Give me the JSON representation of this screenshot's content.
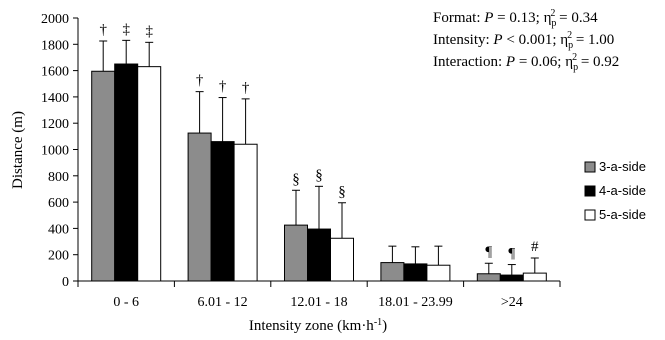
{
  "chart_data": {
    "type": "bar",
    "title": "",
    "xlabel": "Intensity zone (km·h",
    "xlabel_sup": "-1",
    "xlabel_end": ")",
    "ylabel": "Distance (m)",
    "ylim": [
      0,
      2000
    ],
    "yticks": [
      0,
      200,
      400,
      600,
      800,
      1000,
      1200,
      1400,
      1600,
      1800,
      2000
    ],
    "grid": false,
    "legend_position": "right",
    "categories": [
      "0 - 6",
      "6.01 - 12",
      "12.01 - 18",
      "18.01 - 23.99",
      ">24"
    ],
    "series": [
      {
        "name": "3-a-side",
        "color": "#8c8c8c",
        "values": [
          1595,
          1125,
          425,
          140,
          55
        ],
        "errors": [
          230,
          315,
          265,
          125,
          80
        ]
      },
      {
        "name": "4-a-side",
        "color": "#000000",
        "values": [
          1650,
          1060,
          395,
          130,
          45
        ],
        "errors": [
          180,
          335,
          325,
          130,
          80
        ]
      },
      {
        "name": "5-a-side",
        "color": "#ffffff",
        "values": [
          1630,
          1040,
          325,
          120,
          60
        ],
        "errors": [
          185,
          345,
          270,
          145,
          115
        ]
      }
    ],
    "significance": [
      [
        "†",
        "‡",
        "‡"
      ],
      [
        "†",
        "†",
        "†"
      ],
      [
        "§",
        "§",
        "§"
      ],
      [
        "",
        "",
        ""
      ],
      [
        "¶",
        "¶",
        "#"
      ]
    ],
    "stats": [
      {
        "label": "Format:",
        "p_op": "=",
        "p_value": "0.13",
        "eta": "= 0.34"
      },
      {
        "label": "Intensity:",
        "p_op": "<",
        "p_value": "0.001",
        "eta": "= 1.00"
      },
      {
        "label": "Interaction:",
        "p_op": "=",
        "p_value": "0.06",
        "eta": "= 0.92"
      }
    ]
  }
}
